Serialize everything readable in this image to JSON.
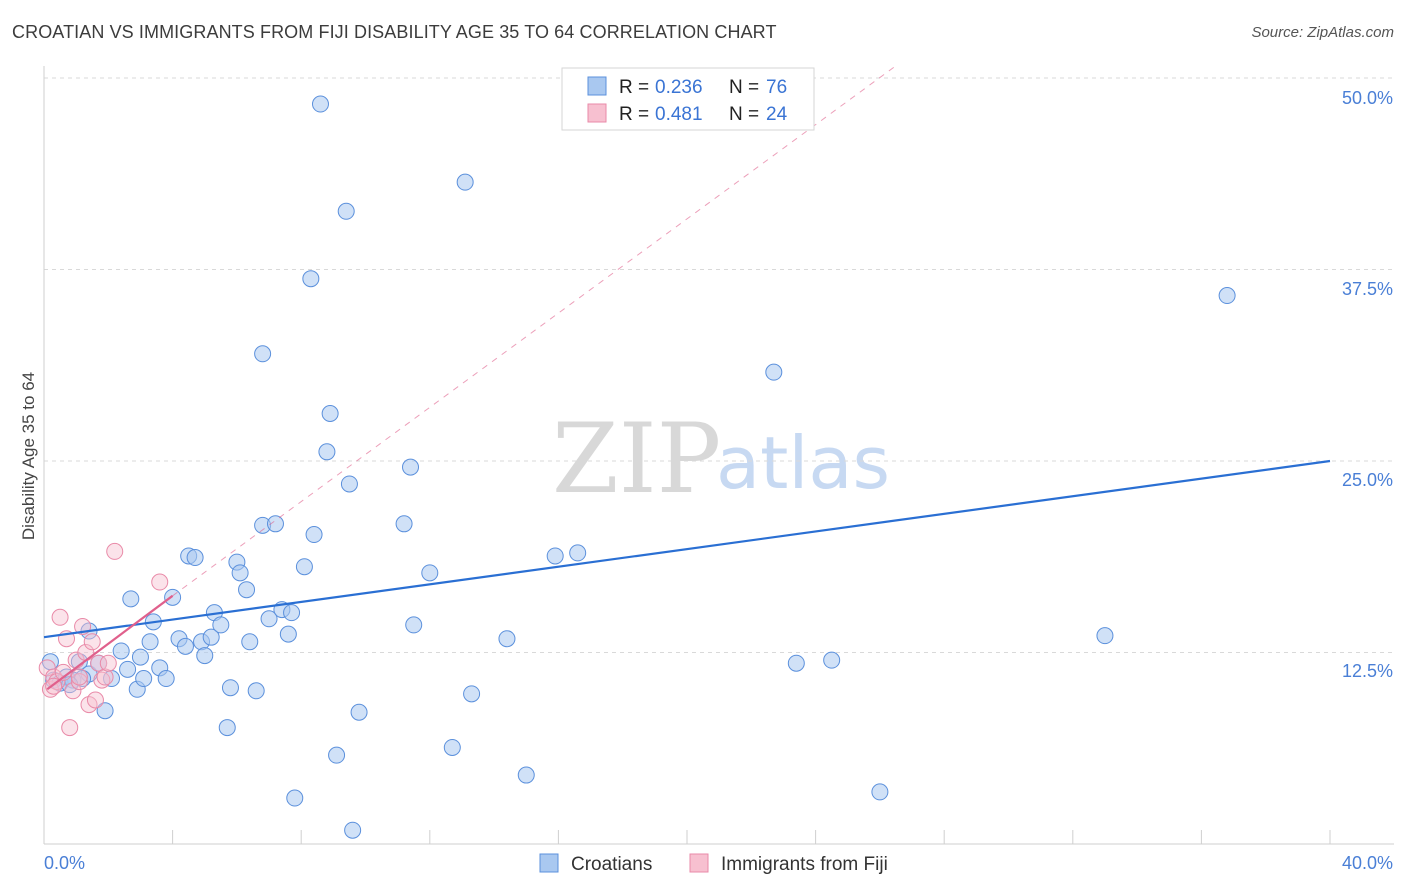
{
  "header": {
    "title": "CROATIAN VS IMMIGRANTS FROM FIJI DISABILITY AGE 35 TO 64 CORRELATION CHART",
    "source": "Source: ZipAtlas.com"
  },
  "watermark": {
    "zip": "ZIP",
    "atlas": "atlas"
  },
  "colors": {
    "croatians_fill": "#a9c8f0",
    "croatians_stroke": "#5b90dc",
    "croatians_line": "#2a6fd3",
    "fiji_fill": "#f7c0d0",
    "fiji_stroke": "#e98aa8",
    "fiji_line": "#e0608c",
    "grid": "#d9d9d9",
    "tick_text": "#4a7fd6"
  },
  "legend": {
    "rows": [
      {
        "r_label": "R =",
        "r_value": "0.236",
        "n_label": "N =",
        "n_value": "76"
      },
      {
        "r_label": "R =",
        "r_value": "0.481",
        "n_label": "N =",
        "n_value": "24"
      }
    ]
  },
  "bottom_legend": {
    "croatians": "Croatians",
    "fiji": "Immigrants from Fiji"
  },
  "chart_data": {
    "type": "scatter",
    "title": "CROATIAN VS IMMIGRANTS FROM FIJI DISABILITY AGE 35 TO 64 CORRELATION CHART",
    "xlabel": "",
    "ylabel": "Disability Age 35 to 64",
    "xlim": [
      0,
      40
    ],
    "ylim": [
      0,
      50
    ],
    "x_tick_labels": [
      "0.0%",
      "40.0%"
    ],
    "y_ticks": [
      12.5,
      25.0,
      37.5,
      50.0
    ],
    "y_tick_labels": [
      "12.5%",
      "25.0%",
      "37.5%",
      "50.0%"
    ],
    "grid": true,
    "legend_position": "top-center",
    "series": [
      {
        "name": "Croatians",
        "r": 0.236,
        "n": 76,
        "trend": {
          "x": [
            0,
            40
          ],
          "y": [
            13.5,
            25.0
          ],
          "style": "solid"
        },
        "points": [
          [
            0.2,
            11.9
          ],
          [
            0.3,
            10.7
          ],
          [
            0.5,
            10.5
          ],
          [
            0.7,
            10.9
          ],
          [
            0.9,
            10.7
          ],
          [
            1.1,
            11.9
          ],
          [
            1.4,
            11.1
          ],
          [
            1.4,
            13.9
          ],
          [
            1.7,
            11.8
          ],
          [
            2.1,
            10.8
          ],
          [
            1.9,
            8.7
          ],
          [
            2.4,
            12.6
          ],
          [
            2.7,
            16.0
          ],
          [
            2.9,
            10.1
          ],
          [
            3.1,
            10.8
          ],
          [
            3.3,
            13.2
          ],
          [
            3.4,
            14.5
          ],
          [
            3.6,
            11.5
          ],
          [
            3.8,
            10.8
          ],
          [
            4.0,
            16.1
          ],
          [
            4.2,
            13.4
          ],
          [
            4.4,
            12.9
          ],
          [
            4.5,
            18.8
          ],
          [
            4.7,
            18.7
          ],
          [
            4.9,
            13.2
          ],
          [
            5.0,
            12.3
          ],
          [
            5.2,
            13.5
          ],
          [
            5.3,
            15.1
          ],
          [
            5.5,
            14.3
          ],
          [
            5.7,
            7.6
          ],
          [
            5.8,
            10.2
          ],
          [
            6.0,
            18.4
          ],
          [
            6.1,
            17.7
          ],
          [
            6.3,
            16.6
          ],
          [
            6.4,
            13.2
          ],
          [
            6.6,
            10.0
          ],
          [
            6.8,
            20.8
          ],
          [
            7.0,
            14.7
          ],
          [
            7.2,
            20.9
          ],
          [
            7.4,
            15.3
          ],
          [
            7.6,
            13.7
          ],
          [
            7.7,
            15.1
          ],
          [
            7.8,
            3.0
          ],
          [
            8.1,
            18.1
          ],
          [
            8.3,
            36.9
          ],
          [
            8.4,
            20.2
          ],
          [
            8.6,
            48.3
          ],
          [
            8.8,
            25.6
          ],
          [
            8.9,
            28.1
          ],
          [
            9.1,
            5.8
          ],
          [
            9.4,
            41.3
          ],
          [
            9.5,
            23.5
          ],
          [
            9.6,
            0.9
          ],
          [
            9.8,
            8.6
          ],
          [
            6.8,
            32.0
          ],
          [
            11.2,
            20.9
          ],
          [
            11.4,
            24.6
          ],
          [
            11.5,
            14.3
          ],
          [
            12.0,
            17.7
          ],
          [
            12.7,
            6.3
          ],
          [
            13.1,
            43.2
          ],
          [
            13.3,
            9.8
          ],
          [
            14.4,
            13.4
          ],
          [
            15.0,
            4.5
          ],
          [
            15.9,
            18.8
          ],
          [
            16.6,
            19.0
          ],
          [
            22.7,
            30.8
          ],
          [
            23.4,
            11.8
          ],
          [
            24.5,
            12.0
          ],
          [
            26.0,
            3.4
          ],
          [
            33.0,
            13.6
          ],
          [
            36.8,
            35.8
          ],
          [
            2.6,
            11.4
          ],
          [
            1.2,
            10.8
          ],
          [
            0.8,
            10.4
          ],
          [
            3.0,
            12.2
          ]
        ]
      },
      {
        "name": "Immigrants from Fiji",
        "r": 0.481,
        "n": 24,
        "trend_solid": {
          "x": [
            0.1,
            4.0
          ],
          "y": [
            10.1,
            16.2
          ]
        },
        "trend_dashed": {
          "x": [
            4.0,
            26.5
          ],
          "y": [
            16.2,
            50.8
          ]
        },
        "points": [
          [
            0.1,
            11.5
          ],
          [
            0.2,
            10.1
          ],
          [
            0.3,
            10.9
          ],
          [
            0.4,
            10.6
          ],
          [
            0.5,
            14.8
          ],
          [
            0.6,
            11.2
          ],
          [
            0.7,
            13.4
          ],
          [
            0.8,
            7.6
          ],
          [
            0.9,
            10.0
          ],
          [
            1.0,
            12.0
          ],
          [
            1.1,
            10.6
          ],
          [
            1.2,
            14.2
          ],
          [
            1.3,
            12.5
          ],
          [
            1.4,
            9.1
          ],
          [
            1.5,
            13.2
          ],
          [
            1.6,
            9.4
          ],
          [
            1.7,
            11.8
          ],
          [
            1.8,
            10.7
          ],
          [
            1.9,
            10.9
          ],
          [
            2.0,
            11.8
          ],
          [
            2.2,
            19.1
          ],
          [
            3.6,
            17.1
          ],
          [
            0.3,
            10.3
          ],
          [
            1.1,
            10.9
          ]
        ]
      }
    ]
  }
}
